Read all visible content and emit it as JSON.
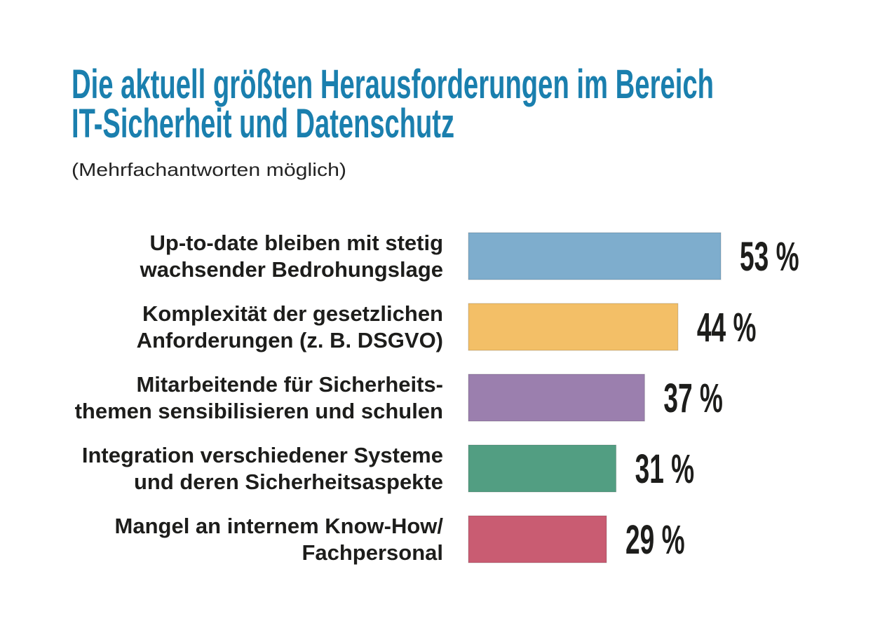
{
  "chart_data": {
    "type": "bar",
    "orientation": "horizontal",
    "title": [
      "Die aktuell größten Herausforderungen im Bereich",
      "IT-Sicherheit und Datenschutz"
    ],
    "subtitle": "(Mehrfachantworten möglich)",
    "title_color": "#1a7fae",
    "categories": [
      [
        "Up-to-date bleiben mit stetig",
        "wachsender Bedrohungslage"
      ],
      [
        "Komplexität der gesetzlichen",
        "Anforderungen (z. B. DSGVO)"
      ],
      [
        "Mitarbeitende für Sicherheits-",
        "themen sensibilisieren und schulen"
      ],
      [
        "Integration verschiedener Systeme",
        "und deren Sicherheitsaspekte"
      ],
      [
        "Mangel an internem Know-How/",
        "Fachpersonal"
      ]
    ],
    "values": [
      53,
      44,
      37,
      31,
      29
    ],
    "value_labels": [
      "53 %",
      "44 %",
      "37 %",
      "31 %",
      "29 %"
    ],
    "colors": [
      "#7eadcd",
      "#f3bf67",
      "#9b7fae",
      "#529e82",
      "#c95c72"
    ],
    "grid": false,
    "legend": "none"
  }
}
